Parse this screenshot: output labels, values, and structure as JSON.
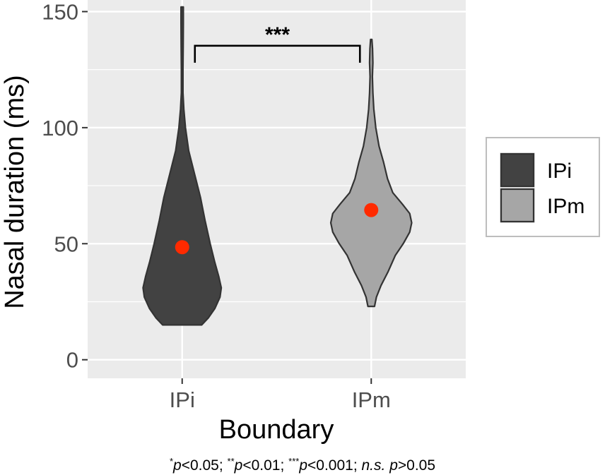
{
  "chart_data": {
    "type": "violin",
    "title": "",
    "xlabel": "Boundary",
    "ylabel": "Nasal duration (ms)",
    "categories": [
      "IPi",
      "IPm"
    ],
    "ylim": [
      -8,
      155
    ],
    "yticks": [
      0,
      50,
      100,
      150
    ],
    "grid": true,
    "legend": {
      "position": "right",
      "entries": [
        "IPi",
        "IPm"
      ]
    },
    "series": [
      {
        "name": "IPi",
        "color": "#424242",
        "mean": 48.5,
        "range": [
          15,
          152
        ],
        "density_profile": [
          [
            15,
            0.3
          ],
          [
            18,
            0.4
          ],
          [
            22,
            0.5
          ],
          [
            27,
            0.58
          ],
          [
            31,
            0.6
          ],
          [
            36,
            0.56
          ],
          [
            42,
            0.5
          ],
          [
            50,
            0.43
          ],
          [
            60,
            0.35
          ],
          [
            70,
            0.28
          ],
          [
            80,
            0.19
          ],
          [
            90,
            0.1
          ],
          [
            100,
            0.05
          ],
          [
            108,
            0.025
          ],
          [
            115,
            0.012
          ],
          [
            125,
            0.012
          ],
          [
            135,
            0.016
          ],
          [
            145,
            0.018
          ],
          [
            152,
            0.018
          ]
        ]
      },
      {
        "name": "IPm",
        "color": "#a6a6a6",
        "mean": 64.5,
        "range": [
          23,
          138
        ],
        "density_profile": [
          [
            23,
            0.05
          ],
          [
            27,
            0.08
          ],
          [
            32,
            0.15
          ],
          [
            38,
            0.26
          ],
          [
            45,
            0.37
          ],
          [
            50,
            0.49
          ],
          [
            55,
            0.59
          ],
          [
            59,
            0.62
          ],
          [
            63,
            0.59
          ],
          [
            67,
            0.48
          ],
          [
            72,
            0.33
          ],
          [
            78,
            0.25
          ],
          [
            85,
            0.19
          ],
          [
            92,
            0.12
          ],
          [
            100,
            0.07
          ],
          [
            108,
            0.04
          ],
          [
            115,
            0.025
          ],
          [
            122,
            0.018
          ],
          [
            128,
            0.025
          ],
          [
            134,
            0.02
          ],
          [
            138,
            0.01
          ]
        ]
      }
    ],
    "annotations": [
      {
        "type": "significance-bracket",
        "from": "IPi",
        "to": "IPm",
        "label": "***"
      }
    ]
  },
  "footnote": {
    "s1": "*",
    "p1": "p",
    "t1": "<0.05; ",
    "s2": "**",
    "p2": "p",
    "t2": "<0.01; ",
    "s3": "***",
    "p3": "p",
    "t3": "<0.001; ",
    "ns": "n.s.",
    "p4": "p",
    "t4": ">0.05"
  }
}
